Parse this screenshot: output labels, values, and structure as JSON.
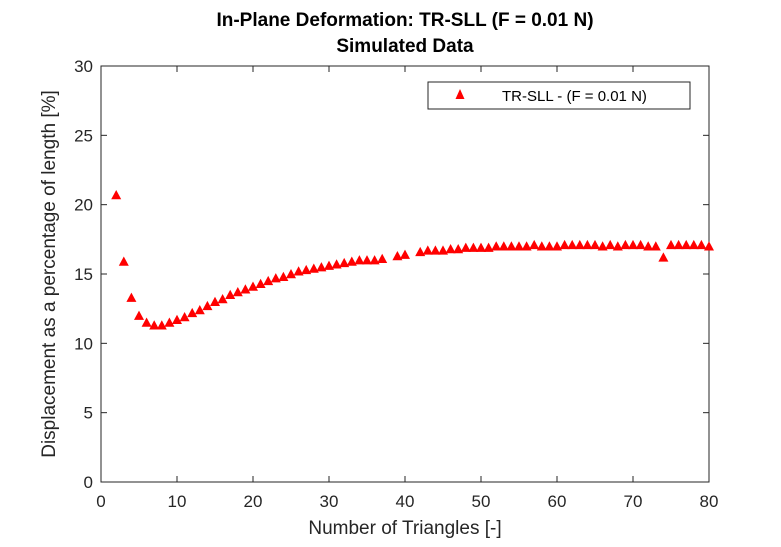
{
  "chart_data": {
    "type": "scatter",
    "title": "In-Plane Deformation: TR-SLL (F = 0.01 N)",
    "subtitle": "Simulated Data",
    "xlabel": "Number of Triangles [-]",
    "ylabel": "Displacement as a percentage of length [%]",
    "xlim": [
      0,
      80
    ],
    "ylim": [
      0,
      30
    ],
    "xticks": [
      "0",
      "10",
      "20",
      "30",
      "40",
      "50",
      "60",
      "70",
      "80"
    ],
    "yticks": [
      "0",
      "5",
      "10",
      "15",
      "20",
      "25",
      "30"
    ],
    "grid": false,
    "legend_position": "top-right",
    "marker": "triangle",
    "color": "#ff0000",
    "series": [
      {
        "name": "TR-SLL - (F = 0.01 N)",
        "x": [
          2,
          3,
          4,
          5,
          6,
          7,
          8,
          9,
          10,
          11,
          12,
          13,
          14,
          15,
          16,
          17,
          18,
          19,
          20,
          21,
          22,
          23,
          24,
          25,
          26,
          27,
          28,
          29,
          30,
          31,
          32,
          33,
          34,
          35,
          36,
          37,
          39,
          40,
          42,
          43,
          44,
          45,
          46,
          47,
          48,
          49,
          50,
          51,
          52,
          53,
          54,
          55,
          56,
          57,
          58,
          59,
          60,
          61,
          62,
          63,
          64,
          65,
          66,
          67,
          68,
          69,
          70,
          71,
          72,
          73,
          74,
          75,
          76,
          77,
          78,
          79,
          80
        ],
        "y": [
          20.7,
          15.9,
          13.3,
          12.0,
          11.5,
          11.3,
          11.3,
          11.5,
          11.7,
          11.9,
          12.2,
          12.4,
          12.7,
          13.0,
          13.2,
          13.5,
          13.7,
          13.9,
          14.1,
          14.3,
          14.5,
          14.7,
          14.8,
          15.0,
          15.2,
          15.3,
          15.4,
          15.5,
          15.6,
          15.7,
          15.8,
          15.9,
          16.0,
          16.0,
          16.0,
          16.1,
          16.3,
          16.4,
          16.6,
          16.7,
          16.7,
          16.7,
          16.8,
          16.8,
          16.9,
          16.9,
          16.9,
          16.9,
          17.0,
          17.0,
          17.0,
          17.0,
          17.0,
          17.1,
          17.0,
          17.0,
          17.0,
          17.1,
          17.1,
          17.1,
          17.1,
          17.1,
          17.0,
          17.1,
          17.0,
          17.1,
          17.1,
          17.1,
          17.0,
          17.0,
          16.2,
          17.1,
          17.1,
          17.1,
          17.1,
          17.1,
          17.0
        ]
      }
    ]
  }
}
